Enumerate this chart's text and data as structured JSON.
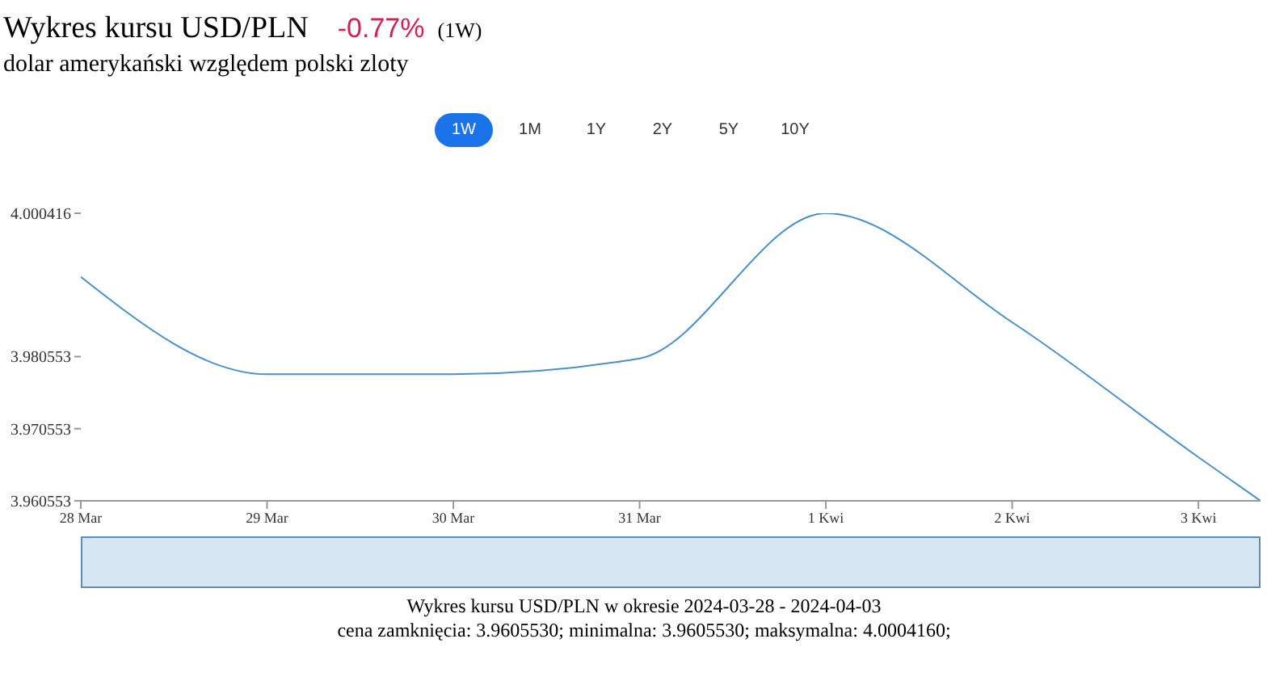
{
  "chart_data": {
    "type": "line",
    "title": "Wykres kursu USD/PLN",
    "subtitle": "dolar amerykański względem polski zloty",
    "annotations": [
      "-0.77%",
      "(1W)",
      "1W",
      "1M",
      "1Y",
      "2Y",
      "5Y",
      "10Y",
      "Wykres kursu USD/PLN w okresie 2024-03-28 - 2024-04-03",
      "cena zamknięcia: 3.9605530; minimalna: 3.9605530; maksymalna: 4.0004160;"
    ],
    "x": [
      "2024-03-28",
      "2024-03-29",
      "2024-03-30",
      "2024-03-31",
      "2024-04-01",
      "2024-04-02",
      "2024-04-03",
      "2024-04-03T08:00"
    ],
    "series": [
      {
        "color": "#4a90c8",
        "values": [
          3.9916,
          3.9781,
          3.9781,
          3.9803,
          4.000416,
          3.9853,
          3.9666,
          3.960553
        ]
      }
    ],
    "xlim": [
      "2024-03-28",
      "2024-04-03T08:00"
    ],
    "xticks": [
      {
        "value": "2024-03-28",
        "label": "28 Mar"
      },
      {
        "value": "2024-03-29",
        "label": "29 Mar"
      },
      {
        "value": "2024-03-30",
        "label": "30 Mar"
      },
      {
        "value": "2024-03-31",
        "label": "31 Mar"
      },
      {
        "value": "2024-04-01",
        "label": "1 Kwi"
      },
      {
        "value": "2024-04-02",
        "label": "2 Kwi"
      },
      {
        "value": "2024-04-03",
        "label": "3 Kwi"
      }
    ],
    "ylim": [
      3.960553,
      4.000416
    ],
    "yticks": [
      3.960553,
      3.970553,
      3.980553,
      4.000416
    ],
    "grid": false,
    "legend": false,
    "marker": "none",
    "line_style": "solid"
  }
}
